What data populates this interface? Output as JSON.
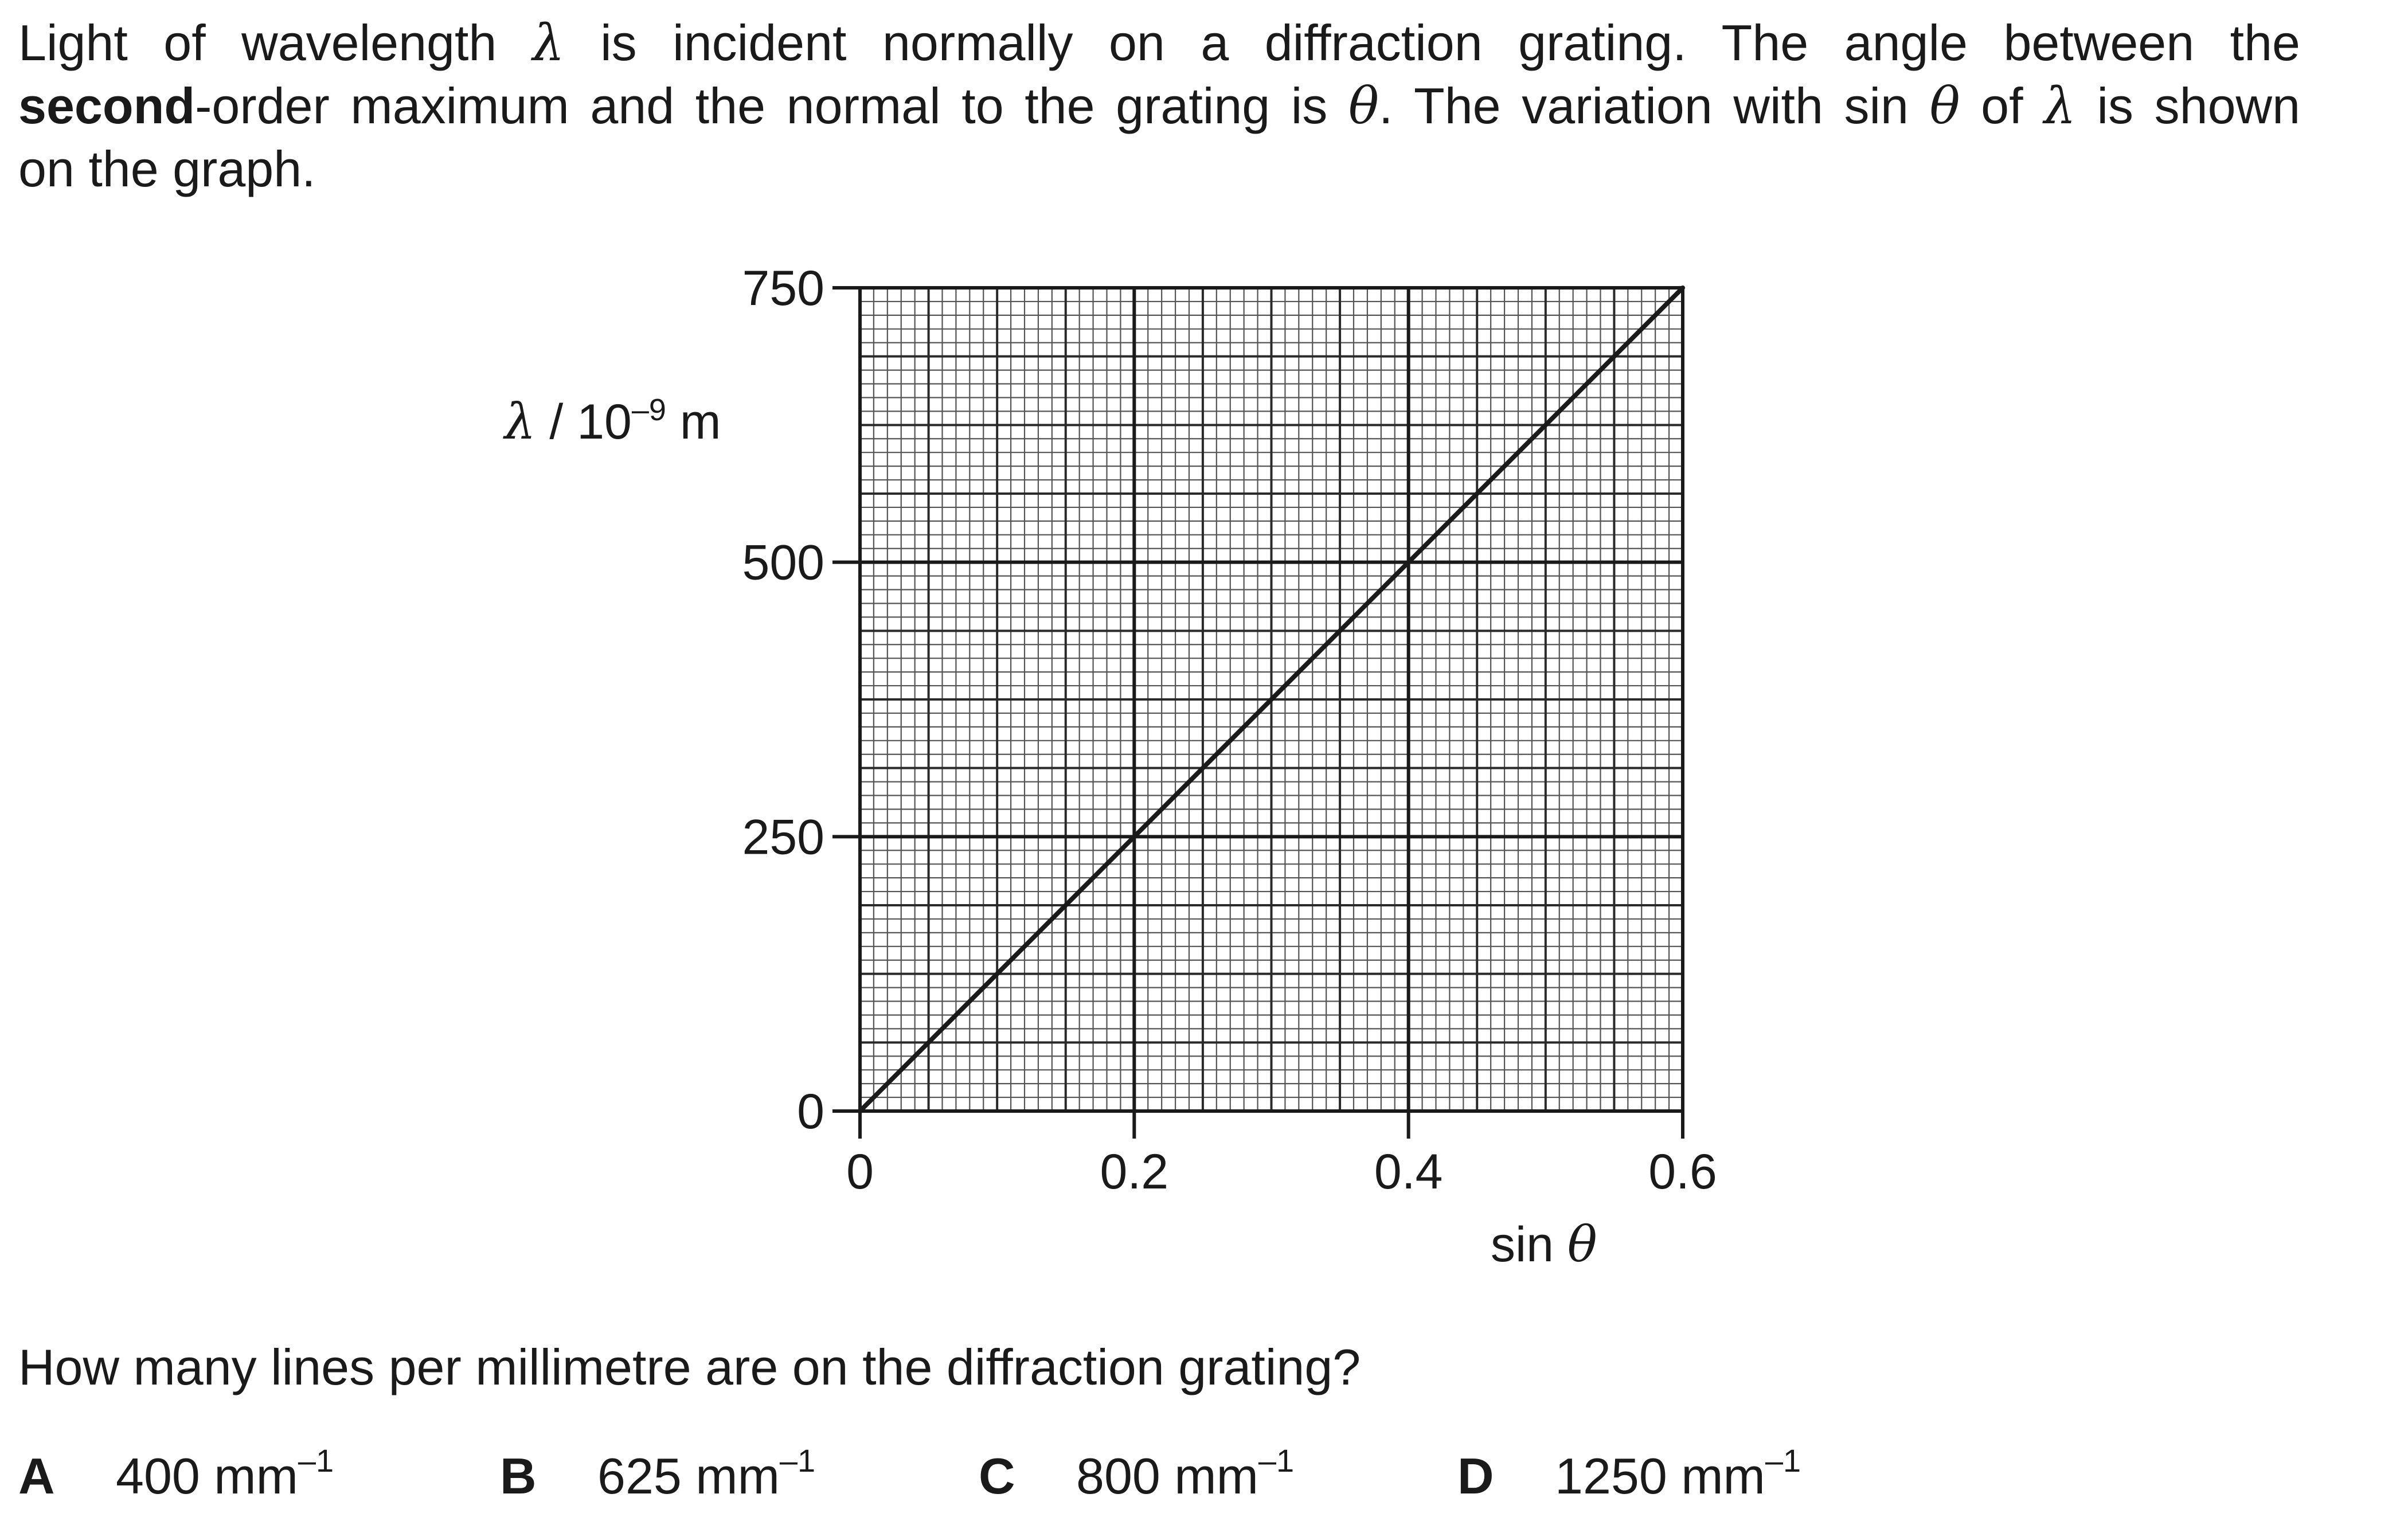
{
  "question": {
    "intro_line1": {
      "a": "Light of wavelength ",
      "sym1": "λ",
      "b": " is incident normally on a diffraction grating. The angle between the"
    },
    "intro_line2": {
      "bold": "second",
      "a": "-order maximum and the normal to the grating is ",
      "sym1": "θ",
      "b": ". The variation with sin ",
      "sym2": "θ",
      "c": " of ",
      "sym3": "λ",
      "d": " is shown"
    },
    "intro_line3": "on the graph.",
    "prompt": "How many lines per millimetre are on the diffraction grating?",
    "options": [
      {
        "letter": "A",
        "value": "400",
        "unit": "mm",
        "exp": "–1"
      },
      {
        "letter": "B",
        "value": "625",
        "unit": "mm",
        "exp": "–1"
      },
      {
        "letter": "C",
        "value": "800",
        "unit": "mm",
        "exp": "–1"
      },
      {
        "letter": "D",
        "value": "1250",
        "unit": "mm",
        "exp": "–1"
      }
    ]
  },
  "chart_data": {
    "type": "line",
    "title": "",
    "xlabel": "sin θ",
    "xlabel_parts": {
      "text": "sin ",
      "sym": "θ"
    },
    "ylabel": "λ / 10⁻⁹ m",
    "ylabel_parts": {
      "sym": "λ",
      "text": " / 10",
      "exp": "–9",
      "unit": " m"
    },
    "xlim": [
      0,
      0.6
    ],
    "ylim": [
      0,
      750
    ],
    "x_ticks": [
      0,
      0.2,
      0.4,
      0.6
    ],
    "x_tick_labels": [
      "0",
      "0.2",
      "0.4",
      "0.6"
    ],
    "y_ticks": [
      0,
      250,
      500,
      750
    ],
    "y_tick_labels": [
      "0",
      "250",
      "500",
      "750"
    ],
    "grid": true,
    "series": [
      {
        "x": [
          0,
          0.6
        ],
        "y": [
          0,
          750
        ]
      }
    ]
  }
}
